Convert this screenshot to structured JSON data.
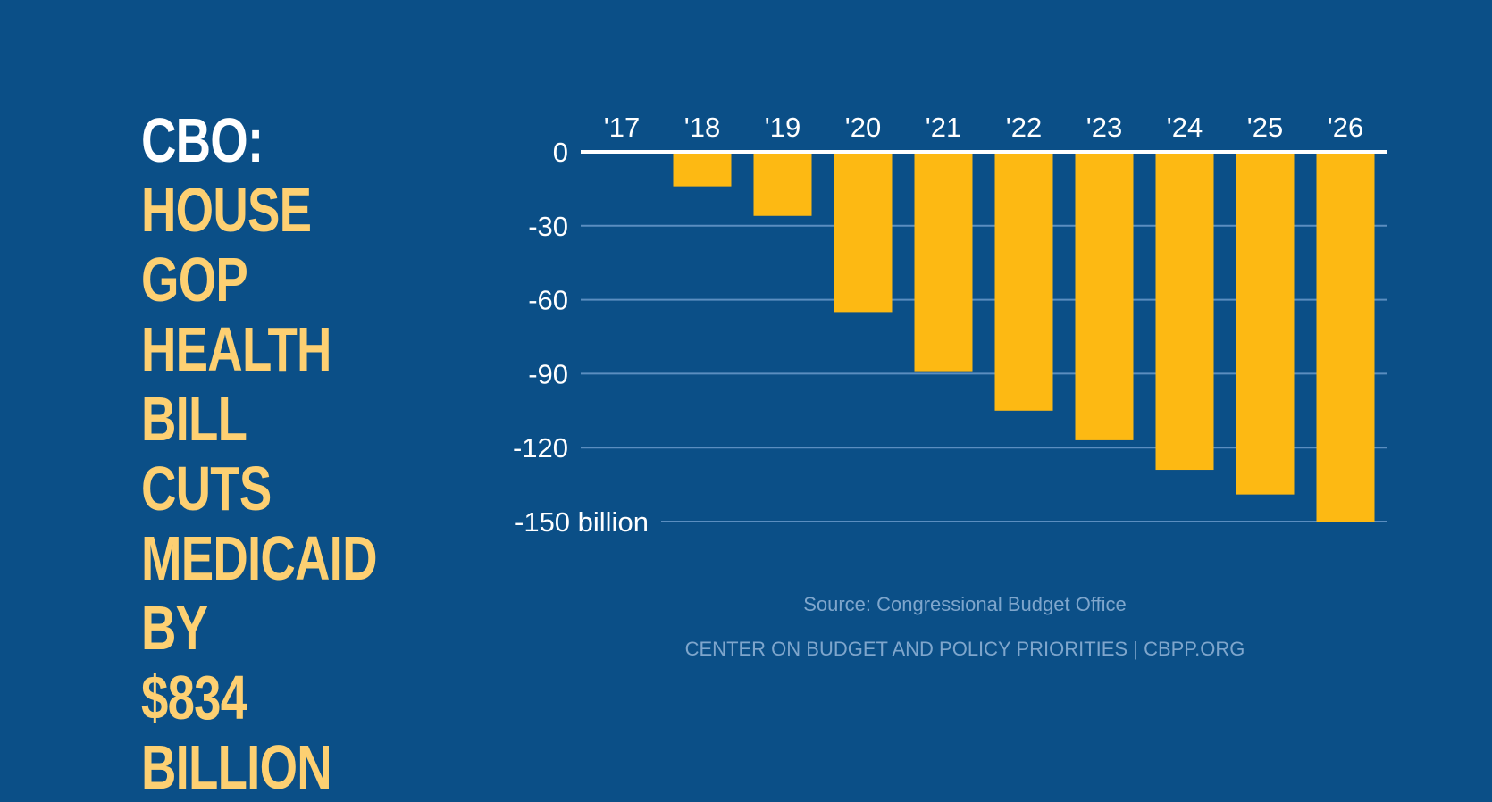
{
  "headline": {
    "lead": "CBO:",
    "main": [
      "HOUSE GOP",
      "HEALTH BILL",
      "CUTS",
      "MEDICAID BY",
      "$834 BILLION"
    ]
  },
  "chart_data": {
    "type": "bar",
    "categories": [
      "'17",
      "'18",
      "'19",
      "'20",
      "'21",
      "'22",
      "'23",
      "'24",
      "'25",
      "'26"
    ],
    "values": [
      0,
      -14,
      -26,
      -65,
      -89,
      -105,
      -117,
      -129,
      -139,
      -150
    ],
    "ylim": [
      -150,
      0
    ],
    "yticks": [
      0,
      -30,
      -60,
      -90,
      -120,
      -150
    ],
    "ytick_labels": [
      "0",
      "-30",
      "-60",
      "-90",
      "-120",
      "-150 billion"
    ],
    "grid": true,
    "bar_color": "#fdb913",
    "grid_color": "#5b8ec0",
    "zero_line_color": "#ffffff"
  },
  "source": "Source: Congressional Budget Office",
  "credit": "CENTER ON BUDGET AND POLICY PRIORITIES | CBPP.ORG"
}
